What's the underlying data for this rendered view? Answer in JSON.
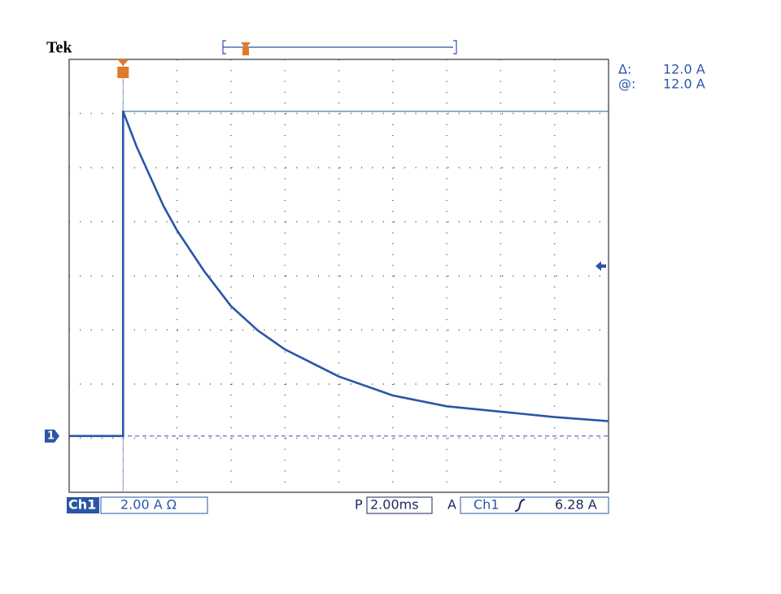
{
  "chart_data": {
    "type": "line",
    "brand": "Tek",
    "x": [
      -2,
      0,
      0,
      0.5,
      1,
      1.5,
      2,
      3,
      4,
      5,
      6,
      8,
      10,
      12,
      14,
      16,
      18
    ],
    "series": [
      {
        "color": "#2a56a8",
        "values": [
          0,
          0,
          12.0,
          10.7,
          9.6,
          8.5,
          7.6,
          6.1,
          4.8,
          3.9,
          3.2,
          2.2,
          1.5,
          1.1,
          0.9,
          0.7,
          0.55
        ]
      }
    ],
    "xlim": [
      -2,
      18
    ],
    "ylim": [
      -2.08,
      13.92
    ],
    "channel_marker": "1",
    "cursors": [
      12.0,
      0
    ],
    "readouts": [
      {
        "label": "Δ:",
        "value": "12.0 A"
      },
      {
        "label": "@:",
        "value": "12.0 A"
      }
    ],
    "trigger_level": {
      "value": 6.28,
      "label": "6.28 A"
    },
    "status": {
      "channel": "Ch1",
      "scale": "2.00 A Ω",
      "p": "P",
      "timebase": "2.00ms",
      "mode": "A",
      "trigger_source": "Ch1"
    }
  }
}
